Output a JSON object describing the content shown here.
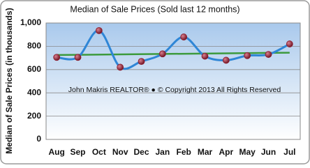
{
  "chart_data": {
    "type": "line",
    "title": "Median of Sale Prices (Sold last 12 months)",
    "y_label": "Median of Sale Prices (in thousands)",
    "annotation": "John Makris REALTOR® ● © Copyright 2013 All Rights Reserved",
    "categories": [
      "Aug",
      "Sep",
      "Oct",
      "Nov",
      "Dec",
      "Jan",
      "Feb",
      "Mar",
      "Apr",
      "May",
      "Jun",
      "Jul"
    ],
    "values": [
      705,
      705,
      935,
      620,
      670,
      735,
      880,
      715,
      680,
      720,
      730,
      820
    ],
    "color": "#2f86d6",
    "marker_color": "#8e1b2c",
    "trend": {
      "color": "#3c9a3c",
      "start": 725,
      "end": 745
    },
    "ylim": [
      0,
      1000
    ],
    "yticks": [
      0,
      200,
      400,
      600,
      800,
      {
        "value": 1000,
        "label": "1,000"
      }
    ],
    "grid": true
  }
}
